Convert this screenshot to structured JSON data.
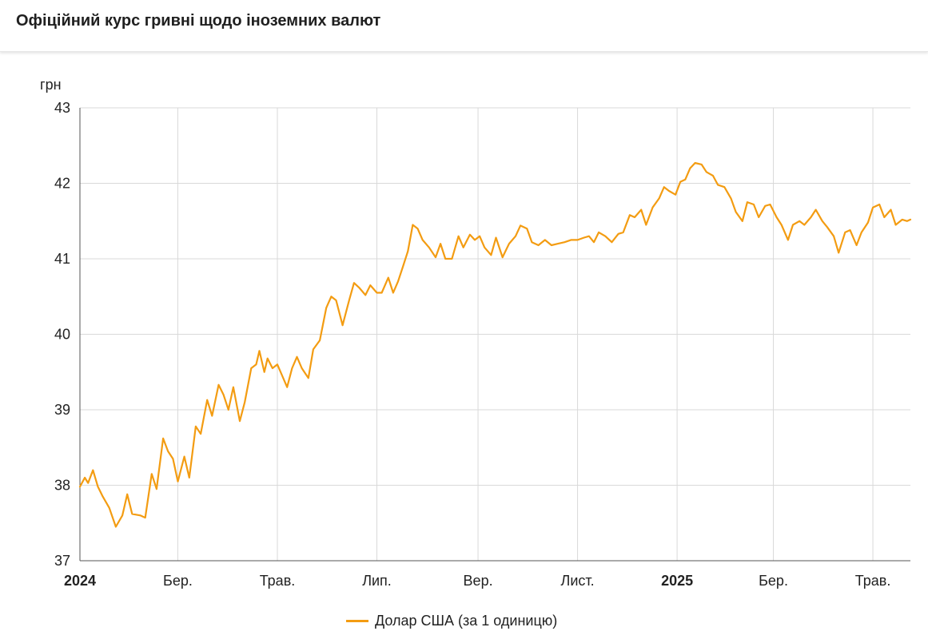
{
  "header": {
    "title": "Офіційний курс гривні щодо іноземних валют"
  },
  "chart_data": {
    "type": "line",
    "ylabel": "грн",
    "ylim": [
      37,
      43
    ],
    "yticks": [
      37,
      38,
      39,
      40,
      41,
      42,
      43
    ],
    "xlim": [
      "2024-01-01",
      "2025-05-24"
    ],
    "grid": true,
    "legend_position": "bottom-center",
    "xticks": [
      {
        "date": "2024-01-01",
        "label": "2024",
        "bold": true
      },
      {
        "date": "2024-03-01",
        "label": "Бер.",
        "bold": false
      },
      {
        "date": "2024-05-01",
        "label": "Трав.",
        "bold": false
      },
      {
        "date": "2024-07-01",
        "label": "Лип.",
        "bold": false
      },
      {
        "date": "2024-09-01",
        "label": "Вер.",
        "bold": false
      },
      {
        "date": "2024-11-01",
        "label": "Лист.",
        "bold": false
      },
      {
        "date": "2025-01-01",
        "label": "2025",
        "bold": true
      },
      {
        "date": "2025-03-01",
        "label": "Бер.",
        "bold": false
      },
      {
        "date": "2025-05-01",
        "label": "Трав.",
        "bold": false
      }
    ],
    "series": [
      {
        "name": "Долар США (за 1 одиницю)",
        "color": "#f39c12",
        "points": [
          [
            "2024-01-01",
            37.98
          ],
          [
            "2024-01-04",
            38.1
          ],
          [
            "2024-01-06",
            38.03
          ],
          [
            "2024-01-09",
            38.2
          ],
          [
            "2024-01-12",
            37.98
          ],
          [
            "2024-01-15",
            37.85
          ],
          [
            "2024-01-19",
            37.7
          ],
          [
            "2024-01-23",
            37.45
          ],
          [
            "2024-01-27",
            37.6
          ],
          [
            "2024-01-30",
            37.88
          ],
          [
            "2024-02-02",
            37.62
          ],
          [
            "2024-02-07",
            37.6
          ],
          [
            "2024-02-10",
            37.57
          ],
          [
            "2024-02-14",
            38.15
          ],
          [
            "2024-02-17",
            37.95
          ],
          [
            "2024-02-21",
            38.62
          ],
          [
            "2024-02-24",
            38.45
          ],
          [
            "2024-02-27",
            38.35
          ],
          [
            "2024-03-01",
            38.05
          ],
          [
            "2024-03-05",
            38.38
          ],
          [
            "2024-03-08",
            38.1
          ],
          [
            "2024-03-12",
            38.78
          ],
          [
            "2024-03-15",
            38.68
          ],
          [
            "2024-03-19",
            39.13
          ],
          [
            "2024-03-22",
            38.92
          ],
          [
            "2024-03-26",
            39.33
          ],
          [
            "2024-03-29",
            39.2
          ],
          [
            "2024-04-01",
            39.0
          ],
          [
            "2024-04-04",
            39.3
          ],
          [
            "2024-04-08",
            38.85
          ],
          [
            "2024-04-11",
            39.1
          ],
          [
            "2024-04-15",
            39.55
          ],
          [
            "2024-04-18",
            39.6
          ],
          [
            "2024-04-20",
            39.78
          ],
          [
            "2024-04-23",
            39.5
          ],
          [
            "2024-04-25",
            39.68
          ],
          [
            "2024-04-28",
            39.55
          ],
          [
            "2024-05-01",
            39.6
          ],
          [
            "2024-05-04",
            39.45
          ],
          [
            "2024-05-07",
            39.3
          ],
          [
            "2024-05-10",
            39.55
          ],
          [
            "2024-05-13",
            39.7
          ],
          [
            "2024-05-16",
            39.55
          ],
          [
            "2024-05-20",
            39.42
          ],
          [
            "2024-05-23",
            39.8
          ],
          [
            "2024-05-27",
            39.92
          ],
          [
            "2024-05-31",
            40.35
          ],
          [
            "2024-06-03",
            40.5
          ],
          [
            "2024-06-06",
            40.45
          ],
          [
            "2024-06-10",
            40.12
          ],
          [
            "2024-06-14",
            40.45
          ],
          [
            "2024-06-17",
            40.68
          ],
          [
            "2024-06-20",
            40.62
          ],
          [
            "2024-06-24",
            40.52
          ],
          [
            "2024-06-27",
            40.65
          ],
          [
            "2024-07-01",
            40.55
          ],
          [
            "2024-07-04",
            40.55
          ],
          [
            "2024-07-08",
            40.75
          ],
          [
            "2024-07-11",
            40.55
          ],
          [
            "2024-07-14",
            40.7
          ],
          [
            "2024-07-17",
            40.9
          ],
          [
            "2024-07-20",
            41.1
          ],
          [
            "2024-07-23",
            41.45
          ],
          [
            "2024-07-26",
            41.4
          ],
          [
            "2024-07-29",
            41.25
          ],
          [
            "2024-08-02",
            41.15
          ],
          [
            "2024-08-06",
            41.02
          ],
          [
            "2024-08-09",
            41.2
          ],
          [
            "2024-08-12",
            41.0
          ],
          [
            "2024-08-16",
            41.0
          ],
          [
            "2024-08-20",
            41.3
          ],
          [
            "2024-08-23",
            41.15
          ],
          [
            "2024-08-27",
            41.32
          ],
          [
            "2024-08-30",
            41.25
          ],
          [
            "2024-09-02",
            41.3
          ],
          [
            "2024-09-05",
            41.15
          ],
          [
            "2024-09-09",
            41.05
          ],
          [
            "2024-09-12",
            41.28
          ],
          [
            "2024-09-16",
            41.02
          ],
          [
            "2024-09-20",
            41.2
          ],
          [
            "2024-09-24",
            41.3
          ],
          [
            "2024-09-27",
            41.44
          ],
          [
            "2024-10-01",
            41.4
          ],
          [
            "2024-10-04",
            41.22
          ],
          [
            "2024-10-08",
            41.18
          ],
          [
            "2024-10-12",
            41.25
          ],
          [
            "2024-10-16",
            41.18
          ],
          [
            "2024-10-20",
            41.2
          ],
          [
            "2024-10-24",
            41.22
          ],
          [
            "2024-10-28",
            41.25
          ],
          [
            "2024-11-01",
            41.25
          ],
          [
            "2024-11-05",
            41.28
          ],
          [
            "2024-11-08",
            41.3
          ],
          [
            "2024-11-11",
            41.22
          ],
          [
            "2024-11-14",
            41.35
          ],
          [
            "2024-11-18",
            41.3
          ],
          [
            "2024-11-22",
            41.22
          ],
          [
            "2024-11-26",
            41.33
          ],
          [
            "2024-11-29",
            41.35
          ],
          [
            "2024-12-03",
            41.58
          ],
          [
            "2024-12-06",
            41.55
          ],
          [
            "2024-12-10",
            41.65
          ],
          [
            "2024-12-13",
            41.45
          ],
          [
            "2024-12-17",
            41.68
          ],
          [
            "2024-12-21",
            41.8
          ],
          [
            "2024-12-24",
            41.95
          ],
          [
            "2024-12-27",
            41.9
          ],
          [
            "2024-12-31",
            41.85
          ],
          [
            "2025-01-03",
            42.02
          ],
          [
            "2025-01-06",
            42.05
          ],
          [
            "2025-01-09",
            42.2
          ],
          [
            "2025-01-12",
            42.27
          ],
          [
            "2025-01-16",
            42.25
          ],
          [
            "2025-01-19",
            42.15
          ],
          [
            "2025-01-23",
            42.1
          ],
          [
            "2025-01-26",
            41.98
          ],
          [
            "2025-01-30",
            41.95
          ],
          [
            "2025-02-03",
            41.8
          ],
          [
            "2025-02-06",
            41.62
          ],
          [
            "2025-02-10",
            41.5
          ],
          [
            "2025-02-13",
            41.75
          ],
          [
            "2025-02-17",
            41.72
          ],
          [
            "2025-02-20",
            41.55
          ],
          [
            "2025-02-24",
            41.7
          ],
          [
            "2025-02-27",
            41.72
          ],
          [
            "2025-03-03",
            41.55
          ],
          [
            "2025-03-06",
            41.45
          ],
          [
            "2025-03-10",
            41.25
          ],
          [
            "2025-03-13",
            41.45
          ],
          [
            "2025-03-17",
            41.5
          ],
          [
            "2025-03-20",
            41.45
          ],
          [
            "2025-03-24",
            41.55
          ],
          [
            "2025-03-27",
            41.65
          ],
          [
            "2025-03-31",
            41.5
          ],
          [
            "2025-04-03",
            41.42
          ],
          [
            "2025-04-07",
            41.3
          ],
          [
            "2025-04-10",
            41.08
          ],
          [
            "2025-04-14",
            41.35
          ],
          [
            "2025-04-17",
            41.38
          ],
          [
            "2025-04-21",
            41.18
          ],
          [
            "2025-04-24",
            41.35
          ],
          [
            "2025-04-28",
            41.48
          ],
          [
            "2025-05-01",
            41.68
          ],
          [
            "2025-05-05",
            41.72
          ],
          [
            "2025-05-08",
            41.55
          ],
          [
            "2025-05-12",
            41.65
          ],
          [
            "2025-05-15",
            41.45
          ],
          [
            "2025-05-19",
            41.52
          ],
          [
            "2025-05-22",
            41.5
          ],
          [
            "2025-05-24",
            41.52
          ]
        ]
      }
    ]
  },
  "legend": {
    "label": "Долар США (за 1 одиницю)"
  }
}
